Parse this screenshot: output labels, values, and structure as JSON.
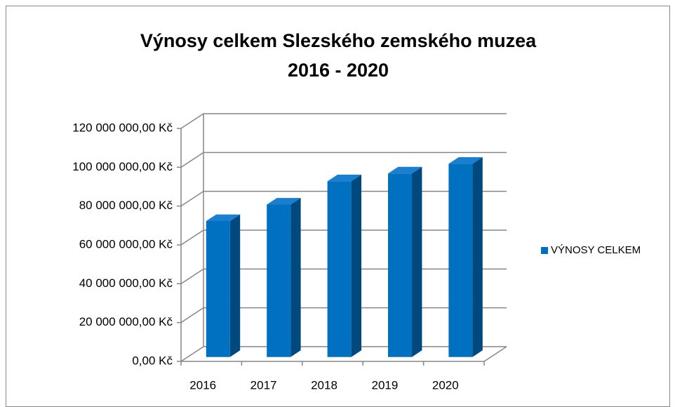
{
  "chart_data": {
    "type": "bar3d",
    "title": [
      "Výnosy celkem Slezského zemského muzea",
      "2016 - 2020"
    ],
    "categories": [
      "2016",
      "2017",
      "2018",
      "2019",
      "2020"
    ],
    "series": [
      {
        "name": "VÝNOSY CELKEM",
        "color": "#0070c0",
        "values": [
          70000000,
          78500000,
          90500000,
          94500000,
          99500000
        ]
      }
    ],
    "ylim": [
      0,
      120000000
    ],
    "yticks": [
      {
        "value": 0,
        "label": "0,00 Kč"
      },
      {
        "value": 20000000,
        "label": "20 000 000,00 Kč"
      },
      {
        "value": 40000000,
        "label": "40 000 000,00 Kč"
      },
      {
        "value": 60000000,
        "label": "60 000 000,00 Kč"
      },
      {
        "value": 80000000,
        "label": "80 000 000,00 Kč"
      },
      {
        "value": 100000000,
        "label": "100 000 000,00 Kč"
      },
      {
        "value": 120000000,
        "label": "120 000 000,00 Kč"
      }
    ],
    "grid": true,
    "legend": "right"
  }
}
